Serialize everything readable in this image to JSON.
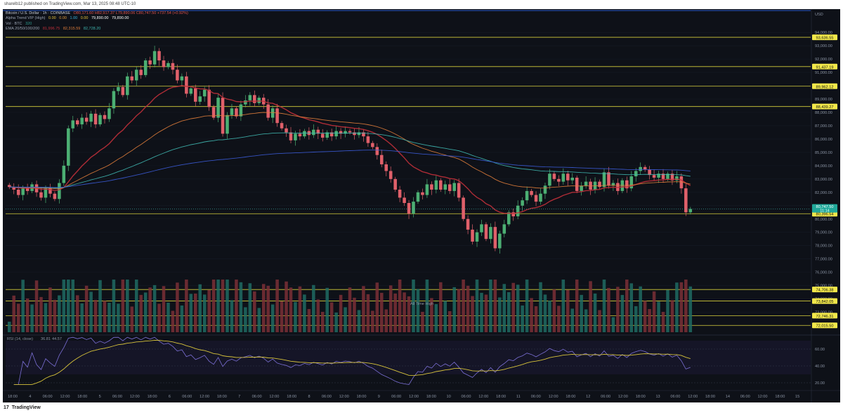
{
  "header": {
    "text": "sharelb12 published on TradingView.com, Mar 13, 2025 08:48 UTC-10"
  },
  "legend": {
    "symbol": "Bitcoin / U.S. Dollar · 1h · COINBASE",
    "ohlc": "O80,171.60 H82,917.37 L79,890.06 C80,747.50 +737.54 (+0.92%)",
    "alpha_label": "Alpha Trend VIP (High)",
    "alpha_values": [
      "0.00",
      "0.00",
      "1.00",
      "0.00",
      "79,890.00",
      "79,890.00"
    ],
    "vol_label": "Vol · BTC",
    "vol_value": "320",
    "ema_label": "EMA 20/50/100/200",
    "ema_values": [
      "81,996.75",
      "82,315.59",
      "82,728.20"
    ]
  },
  "price_scale": {
    "currency": "USD",
    "ticks": [
      "94,000.00",
      "93,000.00",
      "92,000.00",
      "91,000.00",
      "90,000.00",
      "89,000.00",
      "88,000.00",
      "87,000.00",
      "86,000.00",
      "85,000.00",
      "84,000.00",
      "83,000.00",
      "82,000.00",
      "81,000.00",
      "80,000.00",
      "79,000.00",
      "78,000.00",
      "77,000.00",
      "76,000.00",
      "75,000.00",
      "74,000.00",
      "73,000.00",
      "72,000.00"
    ]
  },
  "levels": [
    {
      "price": 93636.55,
      "label": "93,636.55"
    },
    {
      "price": 91437.19,
      "label": "91,437.19"
    },
    {
      "price": 89962.12,
      "label": "89,962.12"
    },
    {
      "price": 88439.27,
      "label": "88,439.27"
    },
    {
      "price": 80396.54,
      "label": "80,396.54"
    },
    {
      "price": 74706.38,
      "label": "74,706.38"
    },
    {
      "price": 73842.05,
      "label": "73,842.05"
    },
    {
      "price": 72746.31,
      "label": "72,746.31"
    },
    {
      "price": 72015.5,
      "label": "72,015.50"
    }
  ],
  "current_price": {
    "price": 80747.5,
    "label": "80,747.50",
    "countdown": "11:14"
  },
  "annotation": "All Time High",
  "rsi": {
    "label": "RSI (14, close)",
    "value1": "36.81",
    "value2": "44.57",
    "ticks": [
      "60.00",
      "40.00",
      "20.00"
    ]
  },
  "time_axis": [
    "18:00",
    "4",
    "06:00",
    "12:00",
    "18:00",
    "5",
    "06:00",
    "12:00",
    "18:00",
    "6",
    "06:00",
    "12:00",
    "18:00",
    "7",
    "06:00",
    "12:00",
    "18:00",
    "8",
    "06:00",
    "12:00",
    "18:00",
    "9",
    "06:00",
    "12:00",
    "18:00",
    "10",
    "06:00",
    "12:00",
    "18:00",
    "11",
    "06:00",
    "12:00",
    "18:00",
    "12",
    "06:00",
    "12:00",
    "18:00",
    "13",
    "06:00",
    "12:00",
    "18:00",
    "14",
    "06:00",
    "12:00",
    "18:00",
    "15"
  ],
  "footer": {
    "brand": "TradingView"
  },
  "chart_data": {
    "type": "candlestick",
    "symbol": "BTCUSD",
    "interval": "1h",
    "ylim": [
      71500,
      94800
    ],
    "close_series": [
      82400,
      82200,
      81800,
      82300,
      82100,
      82600,
      82000,
      81600,
      82300,
      81900,
      81500,
      82700,
      84000,
      86800,
      87400,
      87100,
      87600,
      87300,
      87900,
      87100,
      87800,
      87500,
      88300,
      89600,
      89900,
      89300,
      90700,
      90400,
      91200,
      90800,
      91900,
      91600,
      92600,
      91900,
      91400,
      91700,
      91200,
      90400,
      90700,
      89400,
      89800,
      88800,
      89200,
      89700,
      88400,
      87600,
      89100,
      86400,
      87800,
      88300,
      87700,
      88600,
      88900,
      89300,
      88700,
      89100,
      88600,
      87600,
      88300,
      87200,
      86800,
      86500,
      85900,
      86400,
      86200,
      86600,
      86300,
      86700,
      86400,
      86100,
      86500,
      86200,
      86600,
      86400,
      86600,
      86500,
      86300,
      86500,
      86200,
      85700,
      85400,
      84800,
      84100,
      83600,
      83000,
      82200,
      81600,
      81200,
      80400,
      81300,
      82000,
      81800,
      82600,
      82200,
      82900,
      82200,
      82600,
      82100,
      82700,
      81600,
      80000,
      79200,
      78300,
      79000,
      79600,
      78500,
      79400,
      77800,
      78900,
      79600,
      80500,
      80200,
      81000,
      81400,
      82100,
      81800,
      81300,
      81900,
      82500,
      83400,
      83000,
      82800,
      83400,
      82900,
      83100,
      82100,
      82500,
      82800,
      82200,
      82800,
      82400,
      83500,
      82500,
      82700,
      82100,
      82900,
      82300,
      83200,
      83600,
      83900,
      83700,
      83300,
      83100,
      83400,
      83000,
      83400,
      82900,
      83200,
      82300,
      80500,
      80747
    ]
  }
}
